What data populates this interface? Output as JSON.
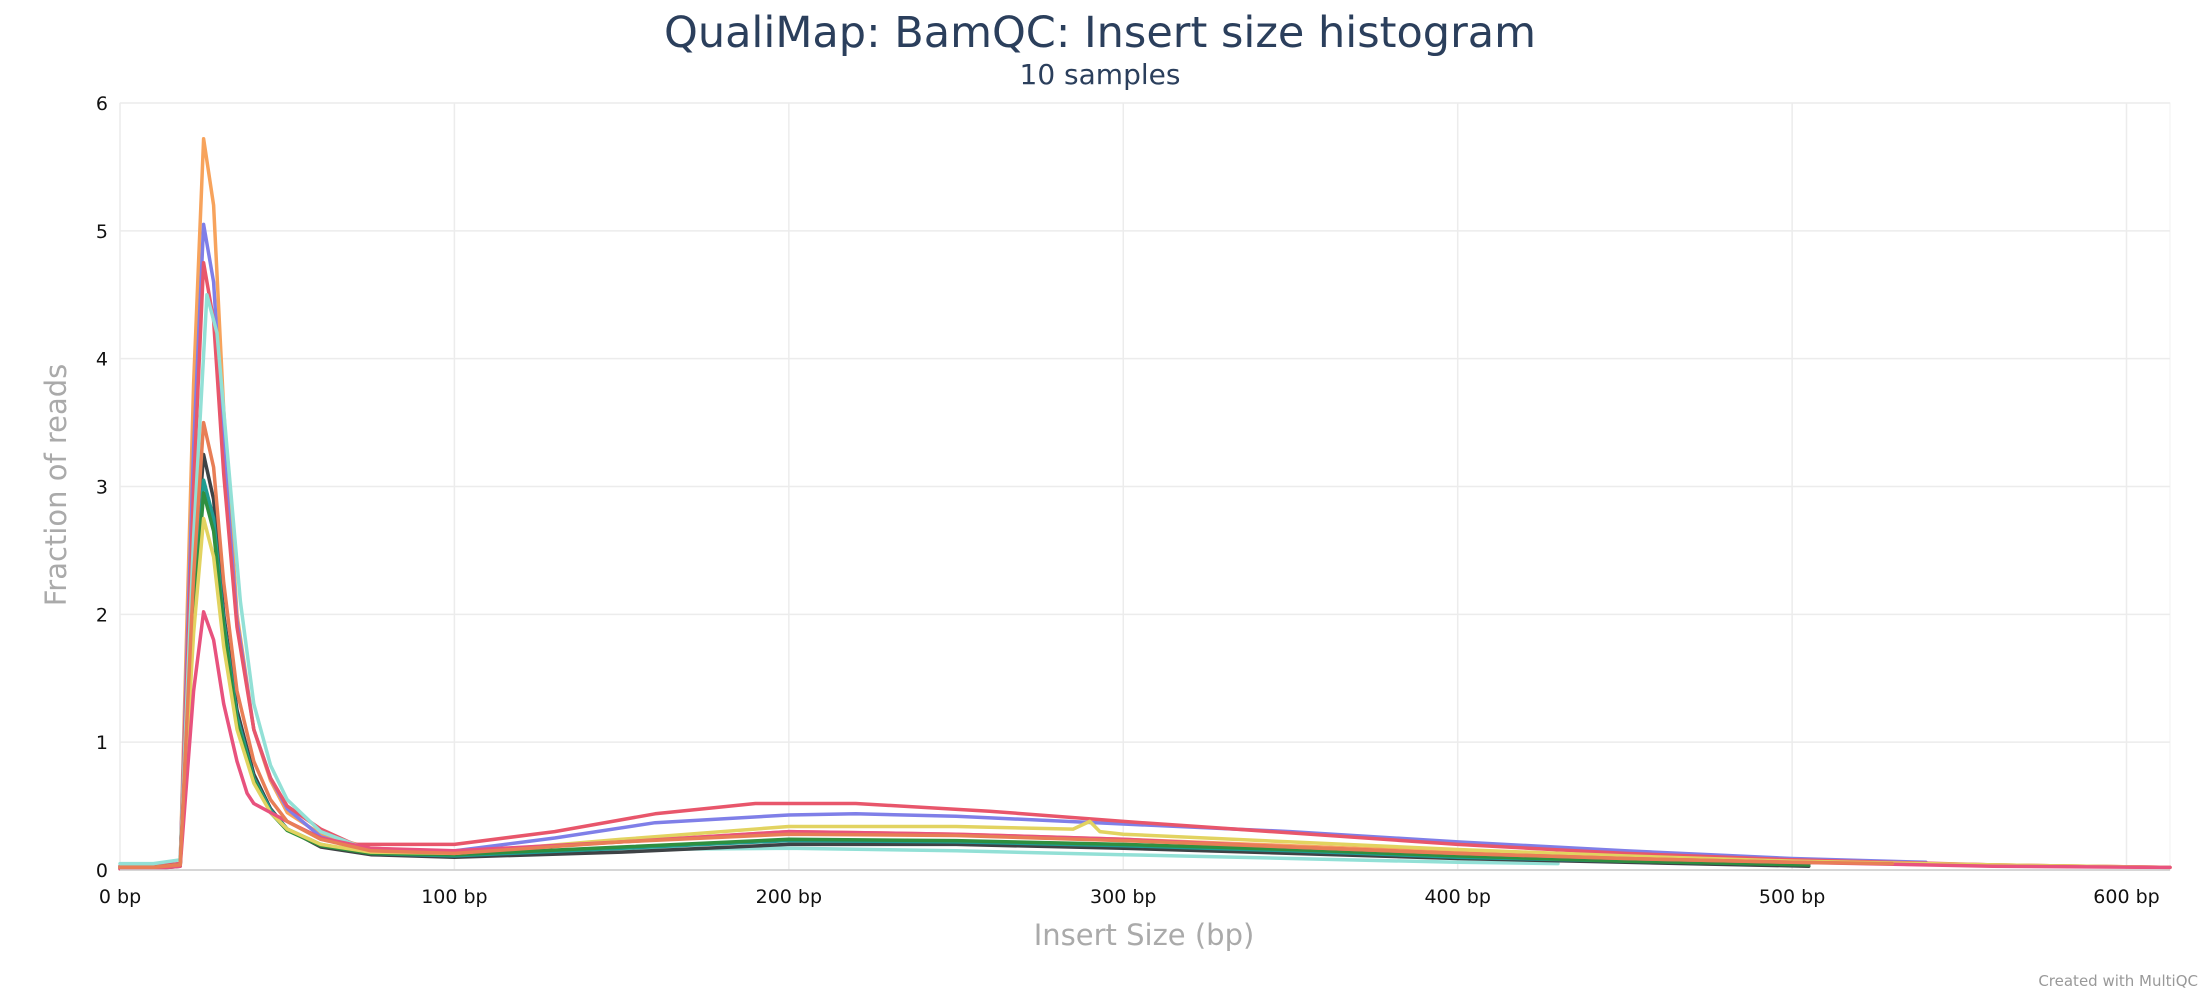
{
  "chart_data": {
    "type": "line",
    "title": "QualiMap: BamQC: Insert size histogram",
    "subtitle": "10 samples",
    "xlabel": "Insert Size (bp)",
    "ylabel": "Fraction of reads",
    "xlim": [
      0,
      613
    ],
    "ylim": [
      0,
      6
    ],
    "x_ticks": [
      0,
      100,
      200,
      300,
      400,
      500,
      600
    ],
    "x_tick_labels": [
      "0 bp",
      "100 bp",
      "200 bp",
      "300 bp",
      "400 bp",
      "500 bp",
      "600 bp"
    ],
    "y_ticks": [
      0,
      1,
      2,
      3,
      4,
      5,
      6
    ],
    "y_tick_labels": [
      "0",
      "1",
      "2",
      "3",
      "4",
      "5",
      "6"
    ],
    "grid": true,
    "legend": "none",
    "series": [
      {
        "color": "#f7a35c",
        "points": [
          [
            0,
            0.03
          ],
          [
            10,
            0.03
          ],
          [
            18,
            0.05
          ],
          [
            22,
            3.8
          ],
          [
            25,
            5.72
          ],
          [
            28,
            5.2
          ],
          [
            31,
            3.6
          ],
          [
            35,
            2.0
          ],
          [
            40,
            1.1
          ],
          [
            45,
            0.7
          ],
          [
            50,
            0.45
          ],
          [
            60,
            0.28
          ],
          [
            75,
            0.17
          ],
          [
            100,
            0.14
          ],
          [
            150,
            0.22
          ],
          [
            200,
            0.3
          ],
          [
            250,
            0.28
          ],
          [
            300,
            0.24
          ],
          [
            350,
            0.19
          ],
          [
            400,
            0.14
          ],
          [
            450,
            0.1
          ],
          [
            500,
            0.07
          ],
          [
            560,
            0.04
          ],
          [
            613,
            0.02
          ]
        ]
      },
      {
        "color": "#7f7fe8",
        "points": [
          [
            0,
            0.03
          ],
          [
            10,
            0.03
          ],
          [
            18,
            0.05
          ],
          [
            22,
            3.3
          ],
          [
            25,
            5.05
          ],
          [
            28,
            4.6
          ],
          [
            31,
            3.3
          ],
          [
            35,
            1.95
          ],
          [
            40,
            1.1
          ],
          [
            45,
            0.72
          ],
          [
            50,
            0.48
          ],
          [
            60,
            0.26
          ],
          [
            75,
            0.14
          ],
          [
            100,
            0.15
          ],
          [
            130,
            0.25
          ],
          [
            160,
            0.37
          ],
          [
            200,
            0.43
          ],
          [
            220,
            0.44
          ],
          [
            250,
            0.42
          ],
          [
            300,
            0.36
          ],
          [
            350,
            0.3
          ],
          [
            400,
            0.22
          ],
          [
            450,
            0.15
          ],
          [
            500,
            0.09
          ],
          [
            540,
            0.06
          ]
        ]
      },
      {
        "color": "#e8566b",
        "points": [
          [
            0,
            0.03
          ],
          [
            10,
            0.03
          ],
          [
            18,
            0.05
          ],
          [
            22,
            3.0
          ],
          [
            25,
            4.75
          ],
          [
            28,
            4.3
          ],
          [
            31,
            3.1
          ],
          [
            35,
            1.9
          ],
          [
            40,
            1.1
          ],
          [
            45,
            0.72
          ],
          [
            50,
            0.5
          ],
          [
            60,
            0.32
          ],
          [
            70,
            0.2
          ],
          [
            100,
            0.2
          ],
          [
            130,
            0.3
          ],
          [
            160,
            0.44
          ],
          [
            190,
            0.52
          ],
          [
            220,
            0.52
          ],
          [
            260,
            0.46
          ],
          [
            300,
            0.38
          ],
          [
            350,
            0.29
          ],
          [
            400,
            0.2
          ],
          [
            450,
            0.13
          ],
          [
            500,
            0.08
          ],
          [
            560,
            0.04
          ],
          [
            613,
            0.02
          ]
        ]
      },
      {
        "color": "#92e0d6",
        "points": [
          [
            0,
            0.05
          ],
          [
            10,
            0.05
          ],
          [
            18,
            0.08
          ],
          [
            22,
            2.6
          ],
          [
            26,
            4.5
          ],
          [
            29,
            4.2
          ],
          [
            32,
            3.3
          ],
          [
            36,
            2.1
          ],
          [
            40,
            1.3
          ],
          [
            45,
            0.82
          ],
          [
            50,
            0.55
          ],
          [
            60,
            0.3
          ],
          [
            75,
            0.15
          ],
          [
            100,
            0.12
          ],
          [
            150,
            0.16
          ],
          [
            200,
            0.17
          ],
          [
            250,
            0.15
          ],
          [
            300,
            0.12
          ],
          [
            350,
            0.09
          ],
          [
            400,
            0.06
          ],
          [
            430,
            0.05
          ]
        ]
      },
      {
        "color": "#3e4245",
        "points": [
          [
            0,
            0.01
          ],
          [
            10,
            0.01
          ],
          [
            18,
            0.03
          ],
          [
            22,
            2.2
          ],
          [
            25,
            3.25
          ],
          [
            28,
            2.9
          ],
          [
            31,
            2.0
          ],
          [
            35,
            1.25
          ],
          [
            40,
            0.75
          ],
          [
            45,
            0.48
          ],
          [
            50,
            0.32
          ],
          [
            60,
            0.18
          ],
          [
            75,
            0.12
          ],
          [
            100,
            0.1
          ],
          [
            150,
            0.14
          ],
          [
            200,
            0.2
          ],
          [
            250,
            0.2
          ],
          [
            300,
            0.17
          ],
          [
            350,
            0.13
          ],
          [
            400,
            0.09
          ],
          [
            450,
            0.06
          ],
          [
            505,
            0.03
          ]
        ]
      },
      {
        "color": "#1f9c91",
        "points": [
          [
            0,
            0.02
          ],
          [
            10,
            0.02
          ],
          [
            18,
            0.04
          ],
          [
            22,
            2.05
          ],
          [
            25,
            3.05
          ],
          [
            28,
            2.75
          ],
          [
            31,
            1.95
          ],
          [
            35,
            1.2
          ],
          [
            40,
            0.72
          ],
          [
            45,
            0.47
          ],
          [
            50,
            0.32
          ],
          [
            60,
            0.2
          ],
          [
            75,
            0.13
          ],
          [
            100,
            0.11
          ],
          [
            150,
            0.17
          ],
          [
            200,
            0.23
          ],
          [
            250,
            0.22
          ],
          [
            300,
            0.19
          ],
          [
            350,
            0.15
          ],
          [
            400,
            0.1
          ],
          [
            450,
            0.07
          ],
          [
            505,
            0.04
          ]
        ]
      },
      {
        "color": "#2f8f3f",
        "points": [
          [
            0,
            0.02
          ],
          [
            10,
            0.02
          ],
          [
            18,
            0.04
          ],
          [
            22,
            1.95
          ],
          [
            25,
            2.95
          ],
          [
            28,
            2.65
          ],
          [
            31,
            1.9
          ],
          [
            35,
            1.15
          ],
          [
            40,
            0.7
          ],
          [
            45,
            0.45
          ],
          [
            50,
            0.31
          ],
          [
            60,
            0.19
          ],
          [
            75,
            0.13
          ],
          [
            100,
            0.12
          ],
          [
            150,
            0.18
          ],
          [
            200,
            0.24
          ],
          [
            250,
            0.23
          ],
          [
            300,
            0.2
          ],
          [
            350,
            0.16
          ],
          [
            400,
            0.11
          ],
          [
            450,
            0.07
          ],
          [
            505,
            0.04
          ]
        ]
      },
      {
        "color": "#e2d360",
        "points": [
          [
            0,
            0.02
          ],
          [
            10,
            0.02
          ],
          [
            18,
            0.04
          ],
          [
            22,
            1.85
          ],
          [
            25,
            2.75
          ],
          [
            28,
            2.45
          ],
          [
            31,
            1.75
          ],
          [
            35,
            1.1
          ],
          [
            40,
            0.68
          ],
          [
            45,
            0.45
          ],
          [
            50,
            0.32
          ],
          [
            60,
            0.2
          ],
          [
            75,
            0.14
          ],
          [
            100,
            0.13
          ],
          [
            150,
            0.24
          ],
          [
            200,
            0.34
          ],
          [
            250,
            0.34
          ],
          [
            285,
            0.32
          ],
          [
            290,
            0.38
          ],
          [
            293,
            0.3
          ],
          [
            300,
            0.28
          ],
          [
            350,
            0.22
          ],
          [
            400,
            0.16
          ],
          [
            450,
            0.11
          ],
          [
            500,
            0.07
          ],
          [
            560,
            0.04
          ],
          [
            613,
            0.02
          ]
        ]
      },
      {
        "color": "#e8527e",
        "points": [
          [
            0,
            0.01
          ],
          [
            10,
            0.01
          ],
          [
            18,
            0.03
          ],
          [
            22,
            1.4
          ],
          [
            25,
            2.02
          ],
          [
            28,
            1.8
          ],
          [
            31,
            1.3
          ],
          [
            35,
            0.85
          ],
          [
            38,
            0.6
          ],
          [
            40,
            0.52
          ],
          [
            45,
            0.45
          ],
          [
            50,
            0.38
          ],
          [
            60,
            0.25
          ],
          [
            75,
            0.17
          ],
          [
            100,
            0.15
          ],
          [
            150,
            0.22
          ],
          [
            200,
            0.3
          ],
          [
            250,
            0.28
          ],
          [
            300,
            0.24
          ],
          [
            350,
            0.18
          ],
          [
            400,
            0.13
          ],
          [
            450,
            0.09
          ],
          [
            500,
            0.06
          ],
          [
            560,
            0.03
          ],
          [
            613,
            0.02
          ]
        ]
      },
      {
        "color": "#e87e56",
        "points": [
          [
            0,
            0.02
          ],
          [
            10,
            0.02
          ],
          [
            18,
            0.04
          ],
          [
            22,
            2.3
          ],
          [
            25,
            3.5
          ],
          [
            28,
            3.15
          ],
          [
            31,
            2.25
          ],
          [
            35,
            1.4
          ],
          [
            40,
            0.85
          ],
          [
            45,
            0.55
          ],
          [
            50,
            0.38
          ],
          [
            60,
            0.24
          ],
          [
            75,
            0.15
          ],
          [
            100,
            0.13
          ],
          [
            150,
            0.22
          ],
          [
            200,
            0.28
          ],
          [
            250,
            0.27
          ],
          [
            300,
            0.23
          ],
          [
            350,
            0.18
          ],
          [
            400,
            0.13
          ],
          [
            450,
            0.09
          ],
          [
            500,
            0.06
          ],
          [
            530,
            0.05
          ]
        ]
      }
    ]
  },
  "credit": "Created with MultiQC"
}
